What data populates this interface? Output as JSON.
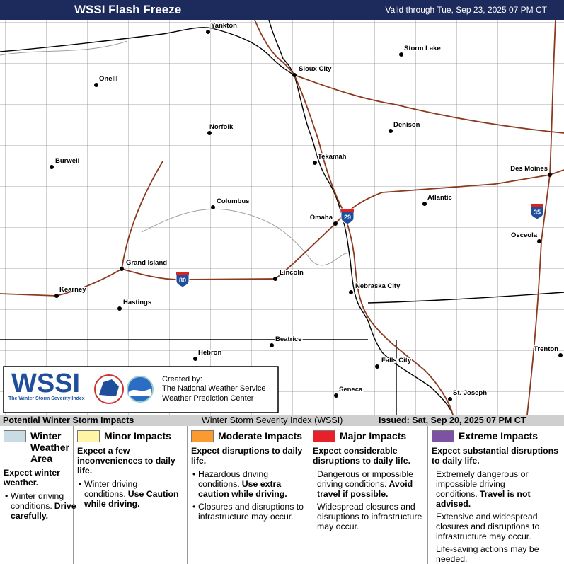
{
  "header": {
    "title": "WSSI Flash Freeze",
    "valid": "Valid through Tue, Sep 23, 2025 07 PM CT"
  },
  "cities": [
    "Yankton",
    "Sioux City",
    "Storm Lake",
    "Onelll",
    "Norfolk",
    "Denison",
    "Burwell",
    "Tekamah",
    "Des Moines",
    "Columbus",
    "Atlantic",
    "Omaha",
    "Osceola",
    "Grand Island",
    "Lincoln",
    "Kearney",
    "Nebraska City",
    "Hastings",
    "Beatrice",
    "Trenton",
    "Hebron",
    "Falls City",
    "Seneca",
    "St. Joseph"
  ],
  "interstates": [
    "80",
    "29",
    "35"
  ],
  "logo": {
    "name": "WSSI",
    "subtitle": "The Winter Storm Severity Index",
    "created": [
      "Created by:",
      "The National Weather Service",
      "Weather Prediction Center"
    ]
  },
  "footer": {
    "left": "Potential Winter Storm Impacts",
    "center": "Winter Storm Severity Index (WSSI)",
    "issued": "Issued: Sat, Sep 20, 2025 07 PM CT"
  },
  "legend": {
    "columns": [
      {
        "title": "Winter Weather Area",
        "color": "#c9dbe3",
        "bulleted": true,
        "headline": "Expect winter weather.",
        "items": [
          {
            "text": "Winter driving conditions.",
            "bold": "Drive carefully."
          }
        ]
      },
      {
        "title": "Minor Impacts",
        "color": "#fff5a5",
        "bulleted": true,
        "headline": "Expect a few inconveniences to daily life.",
        "items": [
          {
            "text": "Winter driving conditions.",
            "bold": "Use Caution while driving."
          }
        ]
      },
      {
        "title": "Moderate Impacts",
        "color": "#fb9a2e",
        "bulleted": true,
        "headline": "Expect disruptions to daily life.",
        "items": [
          {
            "text": "Hazardous driving conditions.",
            "bold": "Use extra caution while driving."
          },
          {
            "text": "Closures and disruptions to infrastructure may occur."
          }
        ]
      },
      {
        "title": "Major Impacts",
        "color": "#e8202a",
        "bulleted": false,
        "headline": "Expect considerable disruptions to daily life.",
        "items": [
          {
            "text": "Dangerous or impossible driving conditions.",
            "bold": "Avoid travel if possible."
          },
          {
            "text": "Widespread closures and disruptions to infrastructure may occur."
          }
        ]
      },
      {
        "title": "Extreme Impacts",
        "color": "#7e52a3",
        "bulleted": false,
        "headline": "Expect substantial disruptions to daily life.",
        "items": [
          {
            "text": "Extremely dangerous or impossible driving conditions.",
            "bold": "Travel is not advised."
          },
          {
            "text": "Extensive and widespread closures and disruptions to infrastructure may occur."
          },
          {
            "text": "Life-saving actions may be needed."
          }
        ]
      }
    ]
  }
}
